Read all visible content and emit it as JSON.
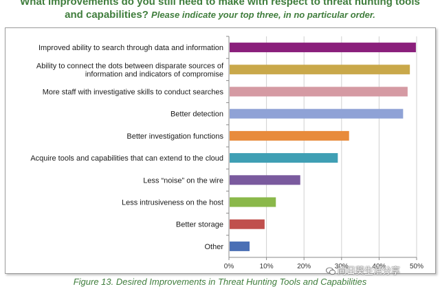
{
  "title": {
    "line1": "What improvements do you still need to make with respect to threat hunting tools",
    "line2": "and capabilities?",
    "subtitle": "Please indicate your top three, in no particular order."
  },
  "caption": "Figure 13. Desired Improvements in Threat Hunting Tools and Capabilities",
  "watermark": "向日葵生活分享",
  "chart_data": {
    "type": "bar",
    "orientation": "horizontal",
    "categories": [
      [
        "Improved ability to search through data and information"
      ],
      [
        "Ability to connect the dots between disparate sources of",
        "information and indicators of compromise"
      ],
      [
        "More staff with investigative skills to conduct searches"
      ],
      [
        "Better detection"
      ],
      [
        "Better investigation functions"
      ],
      [
        "Acquire tools and capabilities that can extend to the cloud"
      ],
      [
        "Less “noise” on the wire"
      ],
      [
        "Less intrusiveness on the host"
      ],
      [
        "Better storage"
      ],
      [
        "Other"
      ]
    ],
    "values": [
      49.8,
      48.2,
      47.6,
      46.4,
      32.0,
      29.0,
      19.0,
      12.5,
      9.5,
      5.5
    ],
    "colors": [
      "#8a1f7b",
      "#c9a84a",
      "#d59aa3",
      "#8fa2d6",
      "#e88b3c",
      "#3f9fb4",
      "#7a5a9e",
      "#8ab84a",
      "#c0504d",
      "#4a6fb5"
    ],
    "xlim": [
      0,
      50
    ],
    "xticks": [
      "0%",
      "10%",
      "20%",
      "30%",
      "40%",
      "50%"
    ],
    "xlabel": "",
    "ylabel": "",
    "grid": true,
    "legend": "none"
  }
}
